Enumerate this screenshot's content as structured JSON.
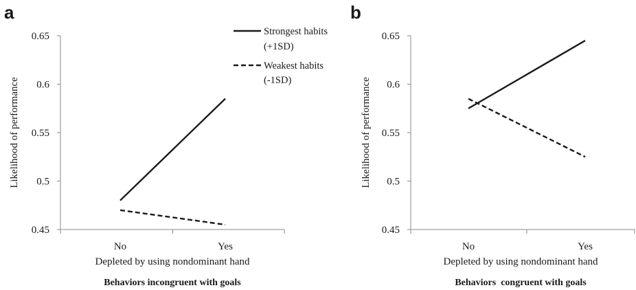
{
  "chart_data": [
    {
      "panel": "a",
      "type": "line",
      "categories": [
        "No",
        "Yes"
      ],
      "series": [
        {
          "name": "Strongest habits (+1SD)",
          "values": [
            0.48,
            0.585
          ]
        },
        {
          "name": "Weakest habits (-1SD)",
          "values": [
            0.47,
            0.455
          ]
        }
      ],
      "xlabel": "Depleted by using nondominant hand",
      "ylabel": "Likelihood of performance",
      "caption": "Behaviors incongruent with goals",
      "yticks": [
        "0.45",
        "0.5",
        "0.55",
        "0.6",
        "0.65"
      ],
      "ylim": [
        0.45,
        0.65
      ],
      "legend": {
        "position": "top-right",
        "entries": [
          {
            "lines": [
              "Strongest habits",
              "(+1SD)"
            ],
            "style": "solid"
          },
          {
            "lines": [
              "Weakest habits",
              "(-1SD)"
            ],
            "style": "dashed"
          }
        ]
      }
    },
    {
      "panel": "b",
      "type": "line",
      "categories": [
        "No",
        "Yes"
      ],
      "series": [
        {
          "name": "Strongest habits (+1SD)",
          "values": [
            0.575,
            0.645
          ]
        },
        {
          "name": "Weakest habits (-1SD)",
          "values": [
            0.585,
            0.525
          ]
        }
      ],
      "xlabel": "Depleted by using nondominant hand",
      "ylabel": "Likelihood of performance",
      "caption": "Behaviors  congruent with goals",
      "yticks": [
        "0.45",
        "0.5",
        "0.55",
        "0.6",
        "0.65"
      ],
      "ylim": [
        0.45,
        0.65
      ]
    }
  ],
  "colors": {
    "line": "#1a1a1a",
    "axis": "#8a8a8a"
  }
}
